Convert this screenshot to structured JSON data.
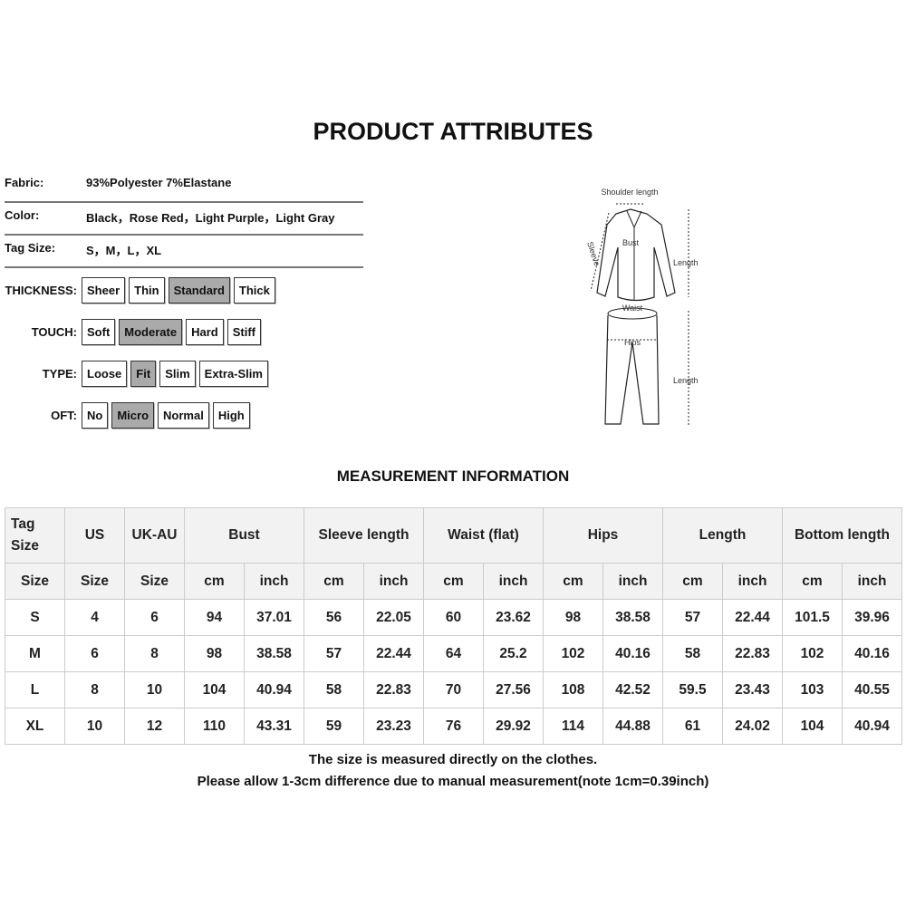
{
  "title": "PRODUCT ATTRIBUTES",
  "attributes": [
    {
      "label": "Fabric:",
      "value": "93%Polyester 7%Elastane"
    },
    {
      "label": "Color:",
      "value": "Black，Rose Red，Light Purple，Light Gray"
    },
    {
      "label": "Tag Size:",
      "value": "S，M，L，XL"
    }
  ],
  "options": [
    {
      "label": "THICKNESS:",
      "items": [
        "Sheer",
        "Thin",
        "Standard",
        "Thick"
      ],
      "selected": "Standard"
    },
    {
      "label": "TOUCH:",
      "items": [
        "Soft",
        "Moderate",
        "Hard",
        "Stiff"
      ],
      "selected": "Moderate"
    },
    {
      "label": "TYPE:",
      "items": [
        "Loose",
        "Fit",
        "Slim",
        "Extra-Slim"
      ],
      "selected": "Fit"
    },
    {
      "label": "OFT:",
      "items": [
        "No",
        "Micro",
        "Normal",
        "High"
      ],
      "selected": "Micro"
    }
  ],
  "diagram": {
    "shoulder": "Shoulder length",
    "sleeve": "Sleeve",
    "bust": "Bust",
    "top_length": "Length",
    "waist": "Waist",
    "hips": "Hips",
    "bottom_length": "Length"
  },
  "measurement_title": "MEASUREMENT INFORMATION",
  "table": {
    "header1": [
      "Tag Size",
      "US",
      "UK-AU",
      "Bust",
      "Sleeve length",
      "Waist  (flat)",
      "Hips",
      "Length",
      "Bottom length"
    ],
    "header2": [
      "Size",
      "Size",
      "Size",
      "cm",
      "inch",
      "cm",
      "inch",
      "cm",
      "inch",
      "cm",
      "inch",
      "cm",
      "inch",
      "cm",
      "inch"
    ],
    "rows": [
      [
        "S",
        "4",
        "6",
        "94",
        "37.01",
        "56",
        "22.05",
        "60",
        "23.62",
        "98",
        "38.58",
        "57",
        "22.44",
        "101.5",
        "39.96"
      ],
      [
        "M",
        "6",
        "8",
        "98",
        "38.58",
        "57",
        "22.44",
        "64",
        "25.2",
        "102",
        "40.16",
        "58",
        "22.83",
        "102",
        "40.16"
      ],
      [
        "L",
        "8",
        "10",
        "104",
        "40.94",
        "58",
        "22.83",
        "70",
        "27.56",
        "108",
        "42.52",
        "59.5",
        "23.43",
        "103",
        "40.55"
      ],
      [
        "XL",
        "10",
        "12",
        "110",
        "43.31",
        "59",
        "23.23",
        "76",
        "29.92",
        "114",
        "44.88",
        "61",
        "24.02",
        "104",
        "40.94"
      ]
    ]
  },
  "notes": [
    "The size is measured directly on the clothes.",
    "Please allow 1-3cm difference due to manual measurement(note 1cm=0.39inch)"
  ]
}
